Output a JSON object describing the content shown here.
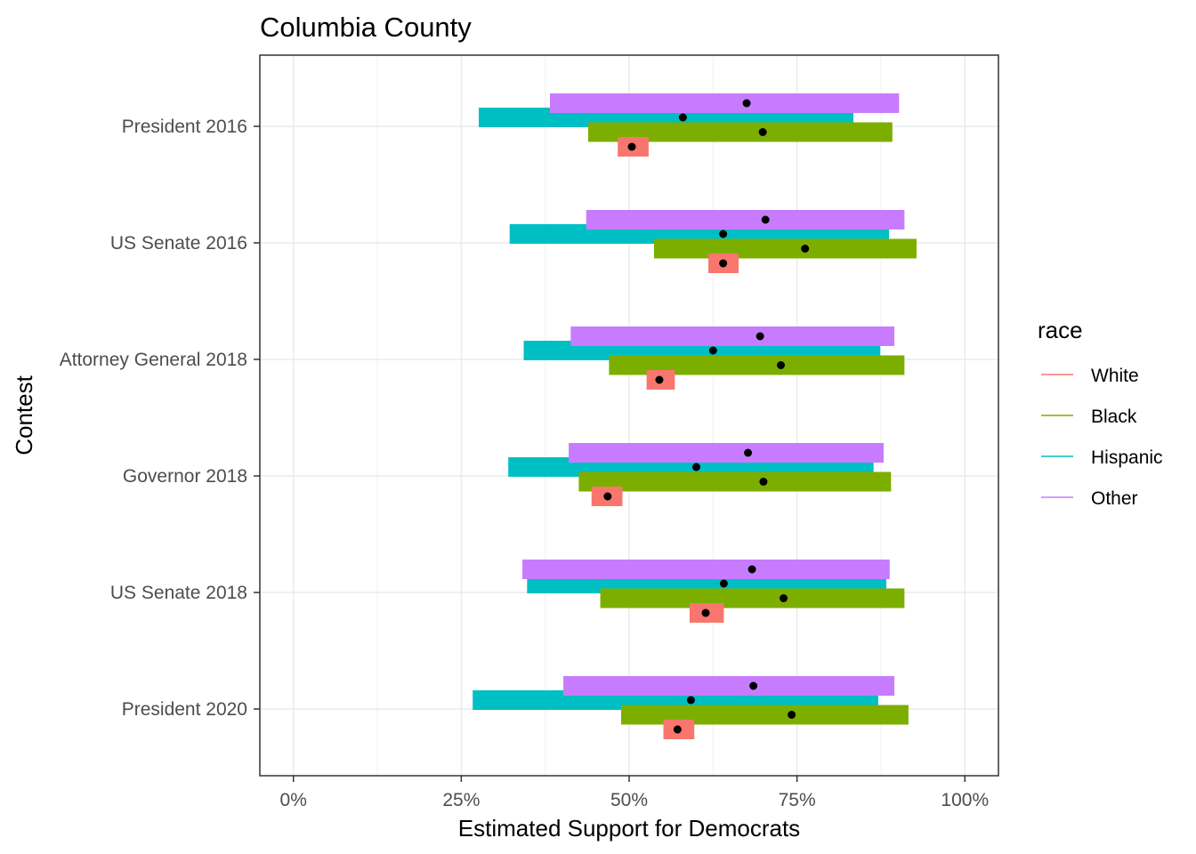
{
  "chart_data": {
    "type": "bar",
    "orientation": "horizontal-interval",
    "title": "Columbia County",
    "xlabel": "Estimated Support for Democrats",
    "ylabel": "Contest",
    "xlim": [
      -0.05,
      1.05
    ],
    "x_ticks": [
      0,
      0.25,
      0.5,
      0.75,
      1.0
    ],
    "x_tick_labels": [
      "0%",
      "25%",
      "50%",
      "75%",
      "100%"
    ],
    "grid": true,
    "legend": {
      "title": "race",
      "position": "right"
    },
    "categories": [
      "President 2016",
      "US Senate 2016",
      "Attorney General 2018",
      "Governor 2018",
      "US Senate 2018",
      "President 2020"
    ],
    "series": [
      {
        "name": "White",
        "color": "#F8766D",
        "estimate": [
          0.504,
          0.64,
          0.545,
          0.468,
          0.614,
          0.572
        ],
        "lower": [
          0.483,
          0.618,
          0.526,
          0.444,
          0.59,
          0.551
        ],
        "upper": [
          0.529,
          0.663,
          0.568,
          0.49,
          0.641,
          0.597
        ]
      },
      {
        "name": "Black",
        "color": "#7CAE00",
        "estimate": [
          0.699,
          0.762,
          0.726,
          0.7,
          0.73,
          0.742
        ],
        "lower": [
          0.439,
          0.537,
          0.47,
          0.425,
          0.457,
          0.488
        ],
        "upper": [
          0.892,
          0.928,
          0.91,
          0.89,
          0.91,
          0.916
        ]
      },
      {
        "name": "Hispanic",
        "color": "#00BFC4",
        "estimate": [
          0.58,
          0.64,
          0.625,
          0.6,
          0.641,
          0.592
        ],
        "lower": [
          0.276,
          0.322,
          0.343,
          0.32,
          0.348,
          0.267
        ],
        "upper": [
          0.834,
          0.887,
          0.874,
          0.864,
          0.883,
          0.871
        ]
      },
      {
        "name": "Other",
        "color": "#C77CFF",
        "estimate": [
          0.675,
          0.703,
          0.695,
          0.677,
          0.683,
          0.685
        ],
        "lower": [
          0.382,
          0.436,
          0.413,
          0.41,
          0.341,
          0.402
        ],
        "upper": [
          0.902,
          0.91,
          0.895,
          0.879,
          0.888,
          0.895
        ]
      }
    ]
  }
}
